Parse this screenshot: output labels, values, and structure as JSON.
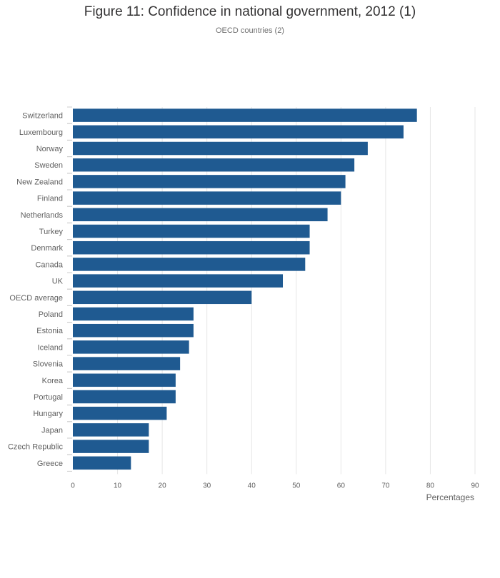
{
  "chart_data": {
    "type": "bar",
    "orientation": "horizontal",
    "title": "Figure 11: Confidence in national government, 2012 (1)",
    "subtitle": "OECD countries (2)",
    "xlabel": "Percentages",
    "ylabel": "",
    "xlim": [
      0,
      90
    ],
    "xticks": [
      0,
      10,
      20,
      30,
      40,
      50,
      60,
      70,
      80,
      90
    ],
    "grid": true,
    "bar_color": "#1f5a91",
    "categories": [
      "Switzerland",
      "Luxembourg",
      "Norway",
      "Sweden",
      "New Zealand",
      "Finland",
      "Netherlands",
      "Turkey",
      "Denmark",
      "Canada",
      "UK",
      "OECD average",
      "Poland",
      "Estonia",
      "Iceland",
      "Slovenia",
      "Korea",
      "Portugal",
      "Hungary",
      "Japan",
      "Czech Republic",
      "Greece"
    ],
    "values": [
      77,
      74,
      66,
      63,
      61,
      60,
      57,
      53,
      53,
      52,
      47,
      40,
      27,
      27,
      26,
      24,
      23,
      23,
      21,
      17,
      17,
      13
    ]
  }
}
